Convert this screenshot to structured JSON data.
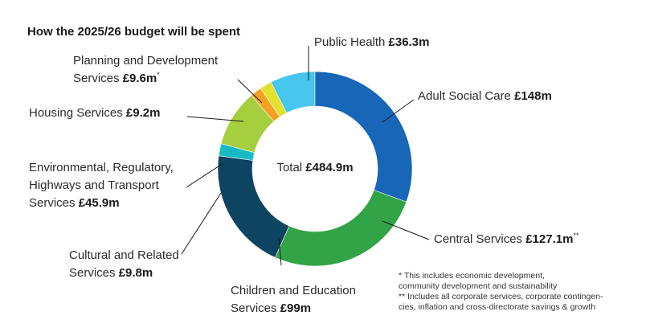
{
  "chart_data": {
    "type": "pie",
    "donut": true,
    "title": "How the 2025/26 budget will be spent",
    "center_label": {
      "text": "Total ",
      "value": "£484.9m"
    },
    "slices": [
      {
        "name": "Public Health",
        "value": 36.3,
        "value_label": "£36.3m",
        "color": "#47c6f0",
        "mark": ""
      },
      {
        "name": "Adult Social Care",
        "value": 148,
        "value_label": "£148m",
        "color": "#1766b8",
        "mark": ""
      },
      {
        "name": "Central Services",
        "value": 127.1,
        "value_label": "£127.1m",
        "color": "#33a348",
        "mark": "**"
      },
      {
        "name": "Children and Education Services",
        "value": 99,
        "value_label": "£99m",
        "color": "#0d4461",
        "mark": ""
      },
      {
        "name": "Cultural and Related Services",
        "value": 9.8,
        "value_label": "£9.8m",
        "color": "#19bac4",
        "mark": ""
      },
      {
        "name": "Environmental, Regulatory, Highways and Transport Services",
        "value": 45.9,
        "value_label": "£45.9m",
        "color": "#a6cf3f",
        "mark": ""
      },
      {
        "name": "Housing Services",
        "value": 9.2,
        "value_label": "£9.2m",
        "color": "#f4a023",
        "mark": ""
      },
      {
        "name": "Planning and Development Services",
        "value": 9.6,
        "value_label": "£9.6m",
        "color": "#e2e12d",
        "mark": "*"
      }
    ],
    "footnotes": [
      "* This includes economic development,",
      "community development and sustainability",
      "** Includes all corporate services, corporate contingen-",
      "cies, inflation and cross-directorate savings & growth"
    ]
  }
}
